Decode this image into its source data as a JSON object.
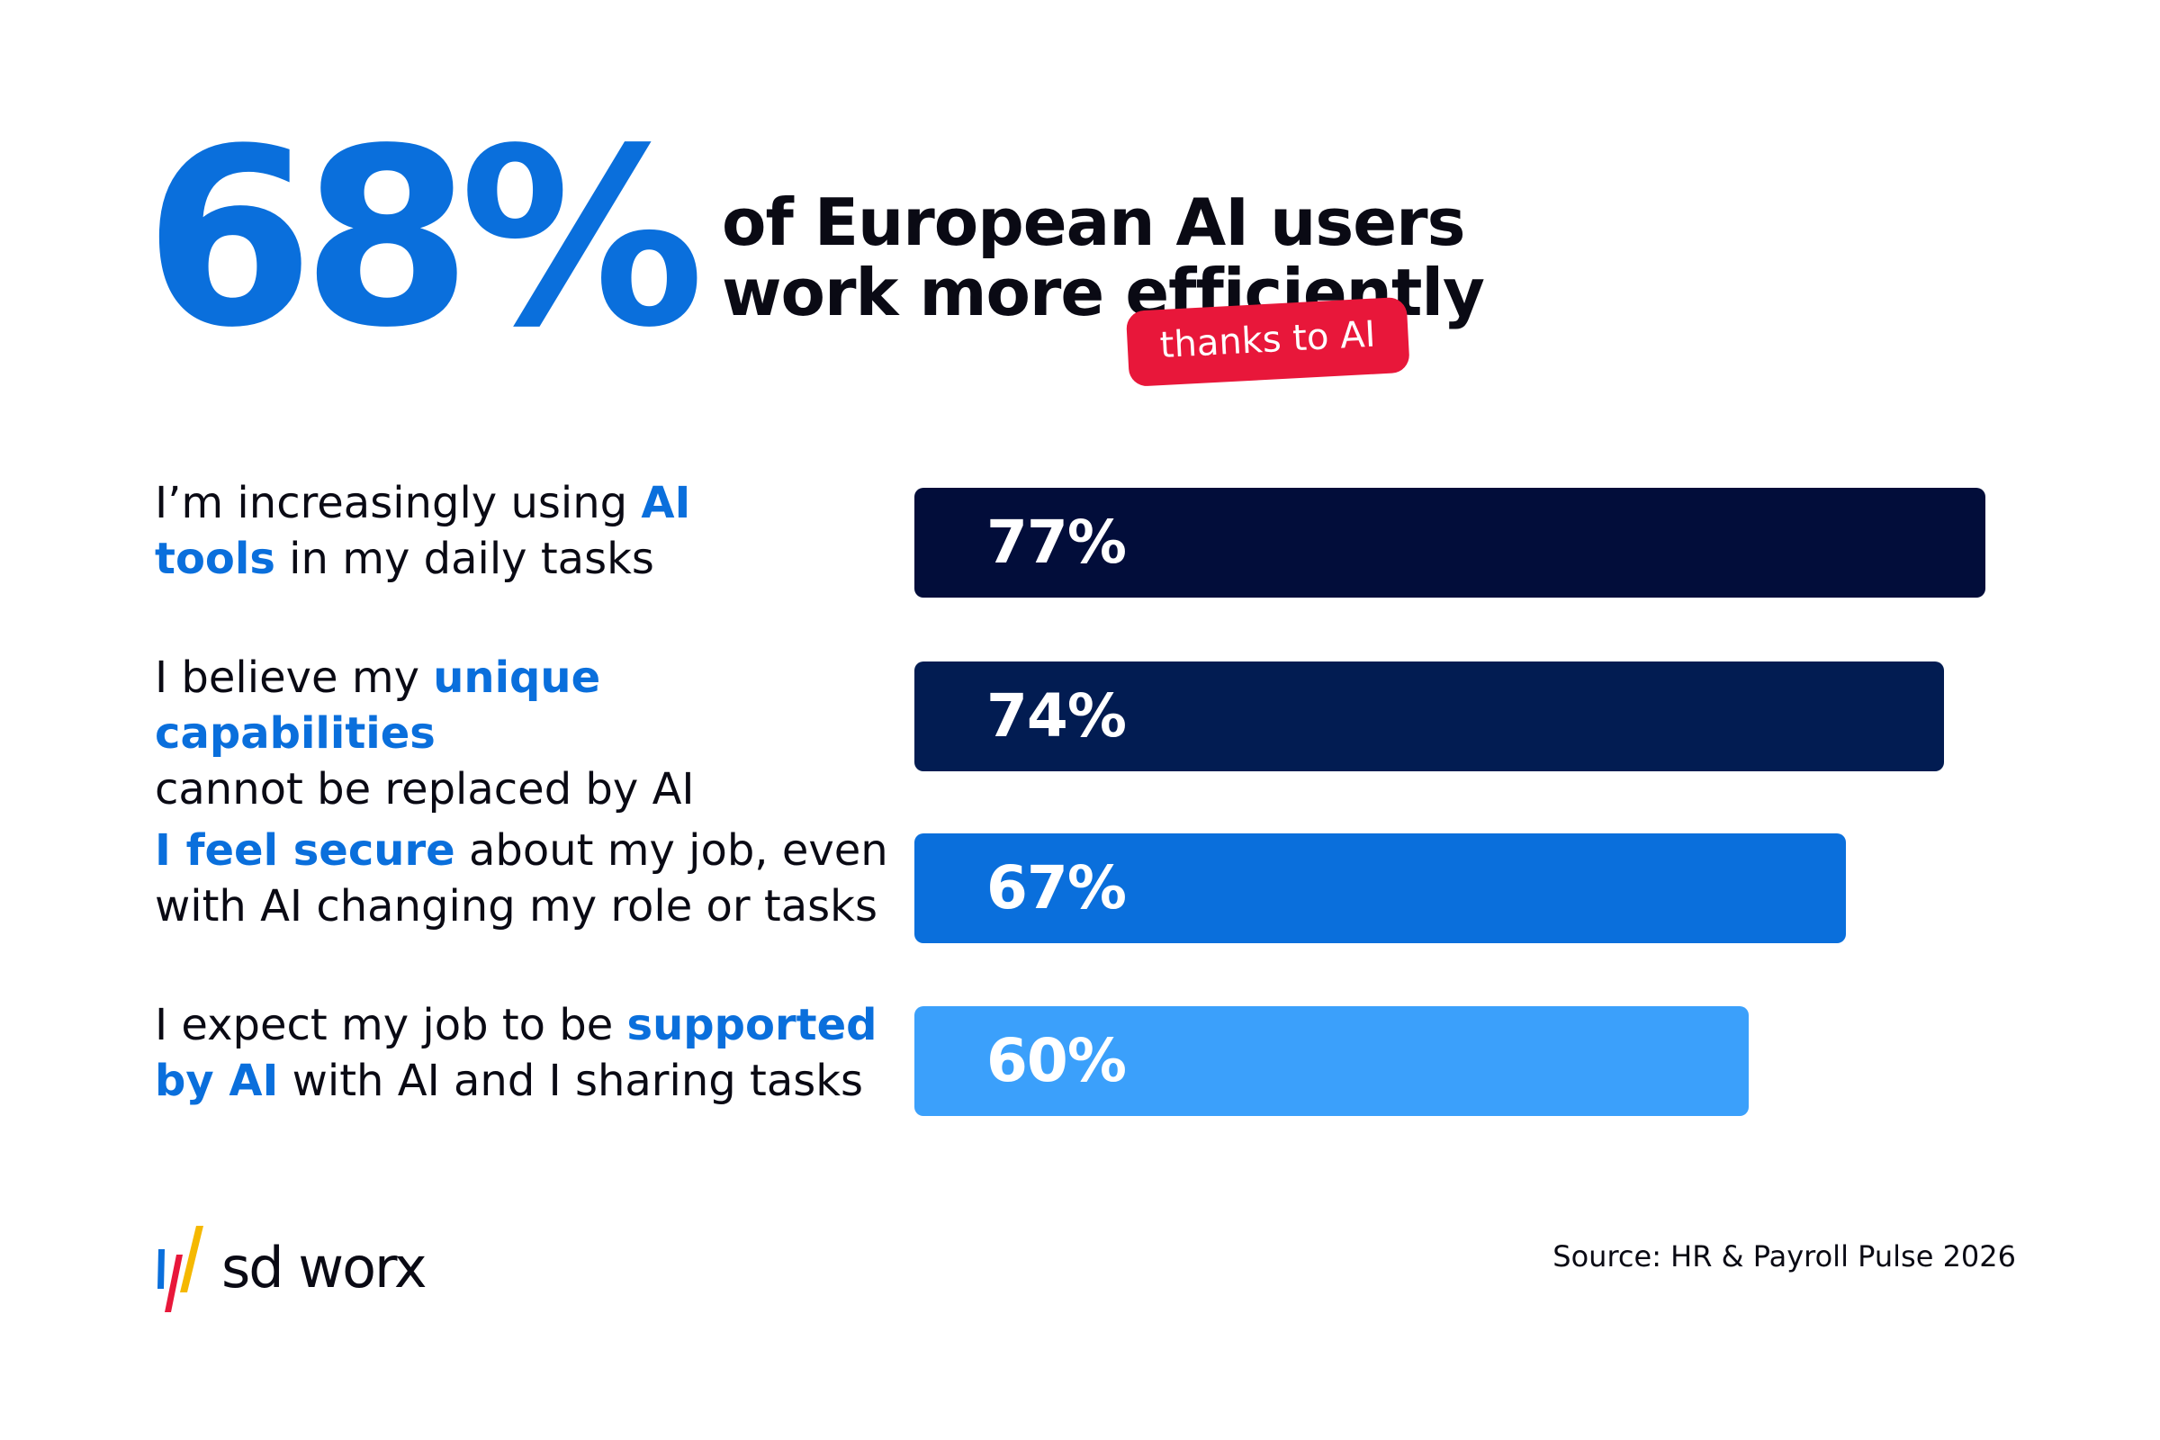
{
  "headline": {
    "stat": "68%",
    "line1": "of European AI users",
    "line2": "work more efficiently",
    "tag": "thanks to AI"
  },
  "colors": {
    "stat_blue": "#0a6fdc",
    "highlight_blue": "#0a6fdc",
    "tag_red": "#e8173a",
    "bar_1": "#020d3a",
    "bar_2": "#021c52",
    "bar_3": "#0a6fdc",
    "bar_4": "#3ba0fb"
  },
  "chart_data": {
    "type": "bar",
    "orientation": "horizontal",
    "categories": [
      "I’m increasingly using AI tools in my daily tasks",
      "I believe my unique capabilities cannot be replaced by AI",
      "I feel secure about my job, even with AI changing my role or tasks",
      "I expect my job to be supported by AI with AI and I sharing tasks"
    ],
    "values": [
      77,
      74,
      67,
      60
    ],
    "value_labels": [
      "77%",
      "74%",
      "67%",
      "60%"
    ],
    "unit": "%",
    "title": "68% of European AI users work more efficiently thanks to AI",
    "xlabel": "",
    "ylabel": "",
    "grid": false,
    "legend": "none"
  },
  "rows": [
    {
      "parts": [
        {
          "text": "I’m increasingly using ",
          "hl": false
        },
        {
          "text": "AI",
          "hl": true
        },
        {
          "br": true
        },
        {
          "text": "tools",
          "hl": true
        },
        {
          "text": " in my daily tasks",
          "hl": false
        }
      ]
    },
    {
      "parts": [
        {
          "text": "I believe my ",
          "hl": false
        },
        {
          "text": "unique capabilities",
          "hl": true
        },
        {
          "br": true
        },
        {
          "text": "cannot be replaced by AI",
          "hl": false
        }
      ]
    },
    {
      "parts": [
        {
          "text": "I feel secure",
          "hl": true
        },
        {
          "text": " about my job, even",
          "hl": false
        },
        {
          "br": true
        },
        {
          "text": "with AI changing my role or tasks",
          "hl": false
        }
      ]
    },
    {
      "parts": [
        {
          "text": "I expect my job to be ",
          "hl": false
        },
        {
          "text": "supported",
          "hl": true
        },
        {
          "br": true
        },
        {
          "text": "by AI",
          "hl": true
        },
        {
          "text": " with AI and I sharing tasks",
          "hl": false
        }
      ]
    }
  ],
  "logo": {
    "text": "sd worx",
    "colors": [
      "#0a6fdc",
      "#e8173a",
      "#f5b800"
    ]
  },
  "footer": {
    "source": "Source: HR & Payroll Pulse 2026"
  }
}
